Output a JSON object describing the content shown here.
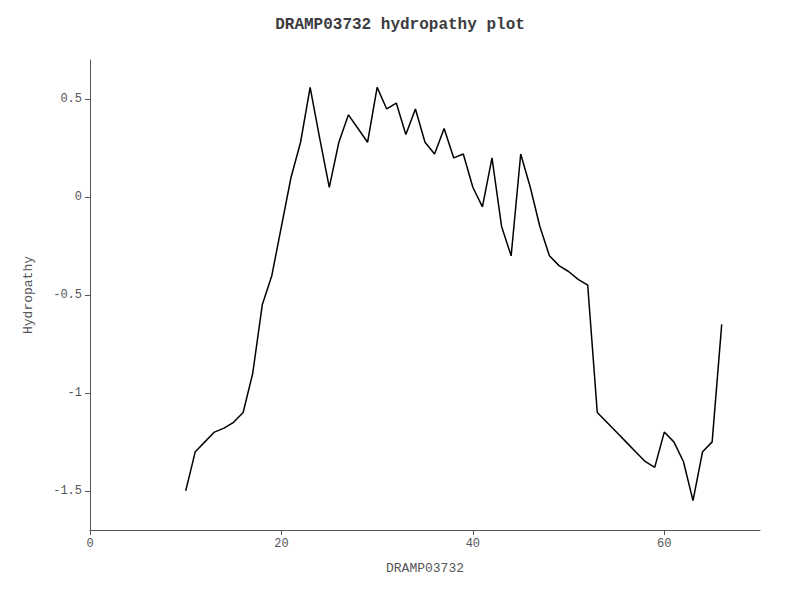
{
  "chart_data": {
    "type": "line",
    "title": "DRAMP03732 hydropathy plot",
    "xlabel": "DRAMP03732",
    "ylabel": "Hydropathy",
    "xlim": [
      0,
      70
    ],
    "ylim": [
      -1.7,
      0.7
    ],
    "xticks": [
      0,
      20,
      40,
      60
    ],
    "yticks": [
      -1.5,
      -1.0,
      -0.5,
      0.0,
      0.5
    ],
    "color": "#000000",
    "grid": false,
    "x": [
      10,
      11,
      12,
      13,
      14,
      15,
      16,
      17,
      18,
      19,
      20,
      21,
      22,
      23,
      24,
      25,
      26,
      27,
      28,
      29,
      30,
      31,
      32,
      33,
      34,
      35,
      36,
      37,
      38,
      39,
      40,
      41,
      42,
      43,
      44,
      45,
      46,
      47,
      48,
      49,
      50,
      51,
      52,
      53,
      54,
      55,
      56,
      57,
      58,
      59,
      60,
      61,
      62,
      63,
      64,
      65,
      66
    ],
    "values": [
      -1.5,
      -1.3,
      -1.25,
      -1.2,
      -1.18,
      -1.15,
      -1.1,
      -0.9,
      -0.55,
      -0.4,
      -0.15,
      0.1,
      0.28,
      0.56,
      0.3,
      0.05,
      0.28,
      0.42,
      0.35,
      0.28,
      0.56,
      0.45,
      0.48,
      0.32,
      0.45,
      0.28,
      0.22,
      0.35,
      0.2,
      0.22,
      0.05,
      -0.05,
      0.2,
      -0.15,
      -0.3,
      0.22,
      0.05,
      -0.15,
      -0.3,
      -0.35,
      -0.38,
      -0.42,
      -0.45,
      -1.1,
      -1.15,
      -1.2,
      -1.25,
      -1.3,
      -1.35,
      -1.38,
      -1.2,
      -1.25,
      -1.35,
      -1.55,
      -1.3,
      -1.25,
      -0.65
    ]
  }
}
